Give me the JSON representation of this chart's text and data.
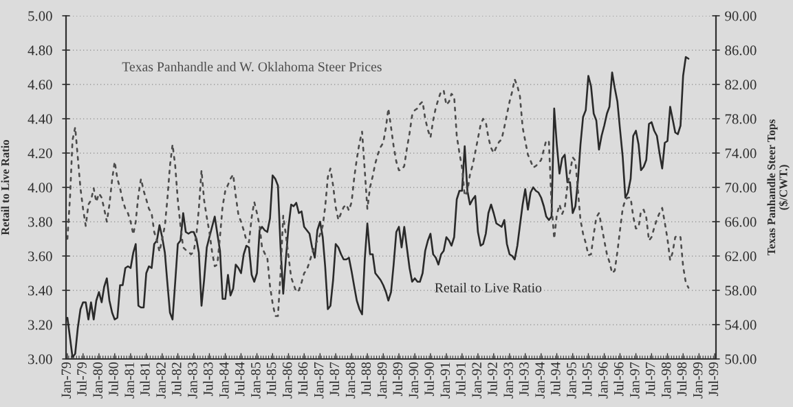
{
  "chart_data": {
    "type": "line",
    "ylabel": "Retail to Live Ratio",
    "y2label": "Texas Panhandle Steer Tops\n($/CWT.)",
    "x": [
      "1979-01",
      "1979-02",
      "1979-03",
      "1979-04",
      "1979-05",
      "1979-06",
      "1979-07",
      "1979-08",
      "1979-09",
      "1979-10",
      "1979-11",
      "1979-12",
      "1980-01",
      "1980-02",
      "1980-03",
      "1980-04",
      "1980-05",
      "1980-06",
      "1980-07",
      "1980-08",
      "1980-09",
      "1980-10",
      "1980-11",
      "1980-12",
      "1981-01",
      "1981-02",
      "1981-03",
      "1981-04",
      "1981-05",
      "1981-06",
      "1981-07",
      "1981-08",
      "1981-09",
      "1981-10",
      "1981-11",
      "1981-12",
      "1982-01",
      "1982-02",
      "1982-03",
      "1982-04",
      "1982-05",
      "1982-06",
      "1982-07",
      "1982-08",
      "1982-09",
      "1982-10",
      "1982-11",
      "1982-12",
      "1983-01",
      "1983-02",
      "1983-03",
      "1983-04",
      "1983-05",
      "1983-06",
      "1983-07",
      "1983-08",
      "1983-09",
      "1983-10",
      "1983-11",
      "1983-12",
      "1984-01",
      "1984-02",
      "1984-03",
      "1984-04",
      "1984-05",
      "1984-06",
      "1984-07",
      "1984-08",
      "1984-09",
      "1984-10",
      "1984-11",
      "1984-12",
      "1985-01",
      "1985-02",
      "1985-03",
      "1985-04",
      "1985-05",
      "1985-06",
      "1985-07",
      "1985-08",
      "1985-09",
      "1985-10",
      "1985-11",
      "1985-12",
      "1986-01",
      "1986-02",
      "1986-03",
      "1986-04",
      "1986-05",
      "1986-06",
      "1986-07",
      "1986-08",
      "1986-09",
      "1986-10",
      "1986-11",
      "1986-12",
      "1987-01",
      "1987-02",
      "1987-03",
      "1987-04",
      "1987-05",
      "1987-06",
      "1987-07",
      "1987-08",
      "1987-09",
      "1987-10",
      "1987-11",
      "1987-12",
      "1988-01",
      "1988-02",
      "1988-03",
      "1988-04",
      "1988-05",
      "1988-06",
      "1988-07",
      "1988-08",
      "1988-09",
      "1988-10",
      "1988-11",
      "1988-12",
      "1989-01",
      "1989-02",
      "1989-03",
      "1989-04",
      "1989-05",
      "1989-06",
      "1989-07",
      "1989-08",
      "1989-09",
      "1989-10",
      "1989-11",
      "1989-12",
      "1990-01",
      "1990-02",
      "1990-03",
      "1990-04",
      "1990-05",
      "1990-06",
      "1990-07",
      "1990-08",
      "1990-09",
      "1990-10",
      "1990-11",
      "1990-12",
      "1991-01",
      "1991-02",
      "1991-03",
      "1991-04",
      "1991-05",
      "1991-06",
      "1991-07",
      "1991-08",
      "1991-09",
      "1991-10",
      "1991-11",
      "1991-12",
      "1992-01",
      "1992-02",
      "1992-03",
      "1992-04",
      "1992-05",
      "1992-06",
      "1992-07",
      "1992-08",
      "1992-09",
      "1992-10",
      "1992-11",
      "1992-12",
      "1993-01",
      "1993-02",
      "1993-03",
      "1993-04",
      "1993-05",
      "1993-06",
      "1993-07",
      "1993-08",
      "1993-09",
      "1993-10",
      "1993-11",
      "1993-12",
      "1994-01",
      "1994-02",
      "1994-03",
      "1994-04",
      "1994-05",
      "1994-06",
      "1994-07",
      "1994-08",
      "1994-09",
      "1994-10",
      "1994-11",
      "1994-12",
      "1995-01",
      "1995-02",
      "1995-03",
      "1995-04",
      "1995-05",
      "1995-06",
      "1995-07",
      "1995-08",
      "1995-09",
      "1995-10",
      "1995-11",
      "1995-12",
      "1996-01",
      "1996-02",
      "1996-03",
      "1996-04",
      "1996-05",
      "1996-06",
      "1996-07",
      "1996-08",
      "1996-09",
      "1996-10",
      "1996-11",
      "1996-12",
      "1997-01",
      "1997-02",
      "1997-03",
      "1997-04",
      "1997-05",
      "1997-06",
      "1997-07",
      "1997-08",
      "1997-09",
      "1997-10",
      "1997-11",
      "1997-12",
      "1998-01",
      "1998-02",
      "1998-03",
      "1998-04",
      "1998-05",
      "1998-06",
      "1998-07",
      "1998-08",
      "1998-09"
    ],
    "xlim": [
      "1978-12-16",
      "1999-07-16"
    ],
    "xticks": [
      {
        "value": "1979-01",
        "label": "Jan-79"
      },
      {
        "value": "1979-07",
        "label": "Jul-79"
      },
      {
        "value": "1980-01",
        "label": "Jan-80"
      },
      {
        "value": "1980-07",
        "label": "Jul-80"
      },
      {
        "value": "1981-01",
        "label": "Jan-81"
      },
      {
        "value": "1981-07",
        "label": "Jul-81"
      },
      {
        "value": "1982-01",
        "label": "Jan-82"
      },
      {
        "value": "1982-07",
        "label": "Jul-82"
      },
      {
        "value": "1983-01",
        "label": "Jan-83"
      },
      {
        "value": "1983-07",
        "label": "Jul-83"
      },
      {
        "value": "1984-01",
        "label": "Jan-84"
      },
      {
        "value": "1984-07",
        "label": "Jul-84"
      },
      {
        "value": "1985-01",
        "label": "Jan-85"
      },
      {
        "value": "1985-07",
        "label": "Jul-85"
      },
      {
        "value": "1986-01",
        "label": "Jan-86"
      },
      {
        "value": "1986-07",
        "label": "Jul-86"
      },
      {
        "value": "1987-01",
        "label": "Jan-87"
      },
      {
        "value": "1987-07",
        "label": "Jul-87"
      },
      {
        "value": "1988-01",
        "label": "Jan-88"
      },
      {
        "value": "1988-07",
        "label": "Jul-88"
      },
      {
        "value": "1989-01",
        "label": "Jan-89"
      },
      {
        "value": "1989-07",
        "label": "Jul-89"
      },
      {
        "value": "1990-01",
        "label": "Jan-90"
      },
      {
        "value": "1990-07",
        "label": "Jul-90"
      },
      {
        "value": "1991-01",
        "label": "Jan-91"
      },
      {
        "value": "1991-07",
        "label": "Jul-91"
      },
      {
        "value": "1992-01",
        "label": "Jan-92"
      },
      {
        "value": "1992-07",
        "label": "Jul-92"
      },
      {
        "value": "1993-01",
        "label": "Jan-93"
      },
      {
        "value": "1993-07",
        "label": "Jul-93"
      },
      {
        "value": "1994-01",
        "label": "Jan-94"
      },
      {
        "value": "1994-07",
        "label": "Jul-94"
      },
      {
        "value": "1995-01",
        "label": "Jan-95"
      },
      {
        "value": "1995-07",
        "label": "Jul-95"
      },
      {
        "value": "1996-01",
        "label": "Jan-96"
      },
      {
        "value": "1996-07",
        "label": "Jul-96"
      },
      {
        "value": "1997-01",
        "label": "Jan-97"
      },
      {
        "value": "1997-07",
        "label": "Jul-97"
      },
      {
        "value": "1998-01",
        "label": "Jan-98"
      },
      {
        "value": "1998-07",
        "label": "Jul-98"
      },
      {
        "value": "1999-01",
        "label": "Jan-99"
      },
      {
        "value": "1999-07",
        "label": "Jul-99"
      }
    ],
    "ylim": [
      3,
      5
    ],
    "yticks": [
      {
        "value": 3,
        "label": "3.00"
      },
      {
        "value": 3.2,
        "label": "3.20"
      },
      {
        "value": 3.4,
        "label": "3.40"
      },
      {
        "value": 3.6,
        "label": "3.60"
      },
      {
        "value": 3.8,
        "label": "3.80"
      },
      {
        "value": 4,
        "label": "4.00"
      },
      {
        "value": 4.2,
        "label": "4.20"
      },
      {
        "value": 4.4,
        "label": "4.40"
      },
      {
        "value": 4.6,
        "label": "4.60"
      },
      {
        "value": 4.8,
        "label": "4.80"
      },
      {
        "value": 5,
        "label": "5.00"
      }
    ],
    "y2lim": [
      50,
      90
    ],
    "y2ticks": [
      {
        "value": 50,
        "label": "50.00"
      },
      {
        "value": 54,
        "label": "54.00"
      },
      {
        "value": 58,
        "label": "58.00"
      },
      {
        "value": 62,
        "label": "62.00"
      },
      {
        "value": 66,
        "label": "66.00"
      },
      {
        "value": 70,
        "label": "70.00"
      },
      {
        "value": 74,
        "label": "74.00"
      },
      {
        "value": 78,
        "label": "78.00"
      },
      {
        "value": 82,
        "label": "82.00"
      },
      {
        "value": 86,
        "label": "86.00"
      },
      {
        "value": 90,
        "label": "90.00"
      }
    ],
    "grid": "y",
    "legend": false,
    "series": [
      {
        "name": "Retail to Live Ratio",
        "color": "#2a2a2a",
        "line_style": "solid",
        "values": [
          3.24,
          3.12,
          3.01,
          3.03,
          3.18,
          3.29,
          3.33,
          3.33,
          3.23,
          3.33,
          3.23,
          3.34,
          3.39,
          3.33,
          3.42,
          3.47,
          3.34,
          3.27,
          3.23,
          3.24,
          3.43,
          3.43,
          3.53,
          3.54,
          3.53,
          3.62,
          3.67,
          3.31,
          3.3,
          3.3,
          3.5,
          3.54,
          3.53,
          3.67,
          3.69,
          3.78,
          3.71,
          3.62,
          3.45,
          3.27,
          3.23,
          3.45,
          3.67,
          3.69,
          3.85,
          3.74,
          3.73,
          3.74,
          3.74,
          3.7,
          3.62,
          3.31,
          3.46,
          3.65,
          3.71,
          3.77,
          3.83,
          3.73,
          3.63,
          3.35,
          3.35,
          3.49,
          3.37,
          3.41,
          3.55,
          3.53,
          3.5,
          3.61,
          3.66,
          3.65,
          3.49,
          3.45,
          3.5,
          3.75,
          3.77,
          3.75,
          3.74,
          3.82,
          4.07,
          4.05,
          4.01,
          3.65,
          3.38,
          3.58,
          3.77,
          3.9,
          3.89,
          3.91,
          3.85,
          3.86,
          3.77,
          3.75,
          3.73,
          3.65,
          3.59,
          3.75,
          3.8,
          3.71,
          3.54,
          3.29,
          3.31,
          3.46,
          3.67,
          3.65,
          3.61,
          3.58,
          3.58,
          3.59,
          3.51,
          3.42,
          3.34,
          3.29,
          3.26,
          3.58,
          3.79,
          3.61,
          3.61,
          3.5,
          3.48,
          3.46,
          3.43,
          3.39,
          3.34,
          3.39,
          3.55,
          3.74,
          3.77,
          3.65,
          3.77,
          3.65,
          3.53,
          3.45,
          3.47,
          3.45,
          3.45,
          3.5,
          3.63,
          3.69,
          3.73,
          3.61,
          3.59,
          3.55,
          3.61,
          3.63,
          3.71,
          3.69,
          3.66,
          3.71,
          3.93,
          3.98,
          3.98,
          4.24,
          3.98,
          3.9,
          3.93,
          3.95,
          3.74,
          3.66,
          3.67,
          3.73,
          3.85,
          3.9,
          3.85,
          3.79,
          3.78,
          3.77,
          3.81,
          3.67,
          3.61,
          3.6,
          3.58,
          3.66,
          3.78,
          3.9,
          3.99,
          3.87,
          3.97,
          4.0,
          3.98,
          3.97,
          3.94,
          3.89,
          3.83,
          3.81,
          3.83,
          4.46,
          4.25,
          4.08,
          4.17,
          4.19,
          4.03,
          4.03,
          3.85,
          3.89,
          4.03,
          4.25,
          4.41,
          4.45,
          4.65,
          4.59,
          4.43,
          4.39,
          4.22,
          4.3,
          4.36,
          4.43,
          4.47,
          4.67,
          4.58,
          4.5,
          4.34,
          4.18,
          3.94,
          3.97,
          4.05,
          4.3,
          4.33,
          4.25,
          4.1,
          4.12,
          4.16,
          4.37,
          4.38,
          4.33,
          4.3,
          4.2,
          4.11,
          4.26,
          4.27,
          4.47,
          4.4,
          4.32,
          4.31,
          4.36,
          4.65,
          4.76,
          4.75
        ]
      },
      {
        "name": "Texas Panhandle and W. Oklahoma Steer Prices",
        "color": "#4c4c4c",
        "axis": "y2",
        "line_style": "dashed",
        "values": [
          64.0,
          69.0,
          75.5,
          77.0,
          73.5,
          69.9,
          67.5,
          65.5,
          68.0,
          68.5,
          69.9,
          68.3,
          69.3,
          68.8,
          67.5,
          66.0,
          68.0,
          70.9,
          73.0,
          71.0,
          69.9,
          68.5,
          67.5,
          67.0,
          66.0,
          64.5,
          66.0,
          69.1,
          71.0,
          69.6,
          68.6,
          67.5,
          67.0,
          64.8,
          63.8,
          62.5,
          64.0,
          65.5,
          68.5,
          72.5,
          75.0,
          72.5,
          68.5,
          65.5,
          63.0,
          62.7,
          62.5,
          62.2,
          62.5,
          64.5,
          67.5,
          72.0,
          68.5,
          66.5,
          64.8,
          62.5,
          60.8,
          61.0,
          64.3,
          67.8,
          69.6,
          70.3,
          71.0,
          71.5,
          69.0,
          66.8,
          66.0,
          65.0,
          63.8,
          63.6,
          66.5,
          68.3,
          67.0,
          65.5,
          63.0,
          62.3,
          61.8,
          58.5,
          56.5,
          55.0,
          55.0,
          60.0,
          66.7,
          64.5,
          62.0,
          59.5,
          58.7,
          57.8,
          58.0,
          58.9,
          60.0,
          60.4,
          61.3,
          62.3,
          63.2,
          63.8,
          64.5,
          65.5,
          67.7,
          71.2,
          72.2,
          70.2,
          67.7,
          66.2,
          67.0,
          67.7,
          68.0,
          67.3,
          68.3,
          71.2,
          73.3,
          75.2,
          76.5,
          72.0,
          67.5,
          70.0,
          71.3,
          72.8,
          73.9,
          74.7,
          75.2,
          77.0,
          79.2,
          77.0,
          74.8,
          73.0,
          72.0,
          72.0,
          72.5,
          74.5,
          76.3,
          78.4,
          79.0,
          79.2,
          79.7,
          80.0,
          78.0,
          76.7,
          75.8,
          77.8,
          79.3,
          80.3,
          81.2,
          81.3,
          79.6,
          80.0,
          80.9,
          80.6,
          76.0,
          74.0,
          72.3,
          69.0,
          69.5,
          71.5,
          72.6,
          74.1,
          75.7,
          77.3,
          78.0,
          77.6,
          75.8,
          74.6,
          74.0,
          74.7,
          75.3,
          75.6,
          77.0,
          78.5,
          80.0,
          81.2,
          82.6,
          81.8,
          80.6,
          77.0,
          75.4,
          73.8,
          73.1,
          72.3,
          72.5,
          72.8,
          73.2,
          74.4,
          75.5,
          75.3,
          68.0,
          64.0,
          66.8,
          68.0,
          66.9,
          67.6,
          70.2,
          71.8,
          73.5,
          73.1,
          69.8,
          66.2,
          64.6,
          63.5,
          62.1,
          62.2,
          64.5,
          66.5,
          67.0,
          65.5,
          63.8,
          62.2,
          61.3,
          60.0,
          60.3,
          62.5,
          65.0,
          67.5,
          68.6,
          68.8,
          68.8,
          66.6,
          65.2,
          65.3,
          67.3,
          67.4,
          66.5,
          63.8,
          64.2,
          65.3,
          66.3,
          67.0,
          67.6,
          65.9,
          64.0,
          61.5,
          62.4,
          64.2,
          64.4,
          64.2,
          60.8,
          58.9,
          58.3
        ]
      }
    ]
  }
}
